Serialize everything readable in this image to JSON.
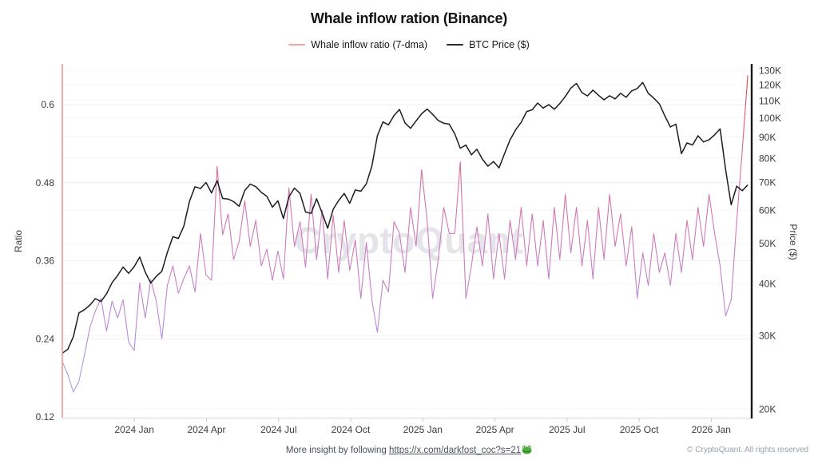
{
  "header": {
    "title": "Whale inflow ration (Binance)"
  },
  "legend": {
    "items": [
      {
        "label": "Whale inflow ratio (7-dma)",
        "color": "#f2a2a8"
      },
      {
        "label": "BTC Price ($)",
        "color": "#2a2a2e"
      }
    ]
  },
  "watermark": "CryptoQuant",
  "footer": {
    "prefix": "More insight by following ",
    "link": "https://x.com/darkfost_coc?s=21",
    "link_emoji": "frog",
    "copyright": "© CryptoQuant. All rights reserved"
  },
  "colors": {
    "background": "#ffffff",
    "title_text": "#121212",
    "tick_text": "#3c3c42",
    "grid": "#ededf2",
    "grid_faint": "#f6f6f9",
    "axis_gray": "#d8d8dd",
    "tick_notch": "#c6c6cc",
    "left_axis": "#f5968f",
    "right_axis": "#1a1a1a",
    "btc_line": "#1c1c1c",
    "spike_red": "#e5453f",
    "lavender": "#a3a7ef",
    "watermark": "#e4e4ea",
    "footer_text": "#4c525a",
    "copyright_text": "#99a0a9",
    "frog_green": "#4cae3d"
  },
  "chart_data": {
    "type": "line",
    "title": "Whale inflow ration (Binance)",
    "grid": "faint horizontal at both axes ticks",
    "legend_position": "top-center",
    "x_axis": {
      "unit": "weeks since 2023-10-01",
      "start_week": 0,
      "step_weeks": 1,
      "end_week": 124,
      "ticks": [
        {
          "t": 13.04,
          "label": "2024 Jan"
        },
        {
          "t": 26.09,
          "label": "2024 Apr"
        },
        {
          "t": 39.13,
          "label": "2024 Jul"
        },
        {
          "t": 52.17,
          "label": "2024 Oct"
        },
        {
          "t": 65.22,
          "label": "2025 Jan"
        },
        {
          "t": 78.26,
          "label": "2025 Apr"
        },
        {
          "t": 91.3,
          "label": "2025 Jul"
        },
        {
          "t": 104.35,
          "label": "2025 Oct"
        },
        {
          "t": 117.39,
          "label": "2026 Jan"
        }
      ]
    },
    "y_left": {
      "label": "Ratio",
      "scale": "linear",
      "range": [
        0.12,
        0.66
      ],
      "ticks": [
        {
          "v": 0.6,
          "label": "0.6"
        },
        {
          "v": 0.48,
          "label": "0.48"
        },
        {
          "v": 0.36,
          "label": "0.36"
        },
        {
          "v": 0.24,
          "label": "0.24"
        },
        {
          "v": 0.12,
          "label": "0.12"
        }
      ]
    },
    "y_right": {
      "label": "Price ($)",
      "scale": "log",
      "unit": "thousand USD",
      "range": [
        20,
        130
      ],
      "ticks": [
        {
          "v": 130,
          "label": "130K"
        },
        {
          "v": 120,
          "label": "120K"
        },
        {
          "v": 110,
          "label": "110K"
        },
        {
          "v": 100,
          "label": "100K"
        },
        {
          "v": 90,
          "label": "90K"
        },
        {
          "v": 80,
          "label": "80K"
        },
        {
          "v": 70,
          "label": "70K"
        },
        {
          "v": 60,
          "label": "60K"
        },
        {
          "v": 50,
          "label": "50K"
        },
        {
          "v": 40,
          "label": "40K"
        },
        {
          "v": 30,
          "label": "30K"
        },
        {
          "v": 20,
          "label": "20K"
        }
      ]
    },
    "series": [
      {
        "name": "Whale inflow ratio (7-dma)",
        "axis": "left",
        "style": "gradient_by_value (red at high ratio, lavender at low ratio)",
        "gradient_stops": [
          {
            "offset": 0.0,
            "color": "#e5453f"
          },
          {
            "offset": 0.1,
            "color": "#e1525f"
          },
          {
            "offset": 0.25,
            "color": "#da6a92"
          },
          {
            "offset": 0.42,
            "color": "#d277b0"
          },
          {
            "offset": 0.58,
            "color": "#c87fc4"
          },
          {
            "offset": 0.75,
            "color": "#b68dd9"
          },
          {
            "offset": 0.9,
            "color": "#a99ce8"
          },
          {
            "offset": 1.0,
            "color": "#a3a7ef"
          }
        ],
        "values": [
          0.205,
          0.185,
          0.158,
          0.175,
          0.215,
          0.258,
          0.283,
          0.302,
          0.252,
          0.298,
          0.272,
          0.3,
          0.235,
          0.222,
          0.326,
          0.272,
          0.331,
          0.298,
          0.24,
          0.322,
          0.352,
          0.31,
          0.333,
          0.352,
          0.312,
          0.402,
          0.338,
          0.33,
          0.505,
          0.4,
          0.432,
          0.362,
          0.39,
          0.452,
          0.382,
          0.422,
          0.352,
          0.378,
          0.33,
          0.375,
          0.332,
          0.472,
          0.382,
          0.42,
          0.35,
          0.462,
          0.362,
          0.438,
          0.332,
          0.43,
          0.342,
          0.422,
          0.345,
          0.392,
          0.302,
          0.388,
          0.3,
          0.25,
          0.33,
          0.312,
          0.42,
          0.402,
          0.342,
          0.442,
          0.382,
          0.5,
          0.422,
          0.302,
          0.362,
          0.442,
          0.402,
          0.402,
          0.512,
          0.302,
          0.352,
          0.412,
          0.352,
          0.432,
          0.332,
          0.402,
          0.332,
          0.422,
          0.362,
          0.442,
          0.352,
          0.432,
          0.352,
          0.422,
          0.332,
          0.442,
          0.362,
          0.462,
          0.372,
          0.442,
          0.352,
          0.422,
          0.332,
          0.442,
          0.362,
          0.462,
          0.382,
          0.432,
          0.352,
          0.412,
          0.302,
          0.372,
          0.322,
          0.402,
          0.342,
          0.372,
          0.322,
          0.402,
          0.342,
          0.422,
          0.362,
          0.442,
          0.382,
          0.462,
          0.402,
          0.352,
          0.275,
          0.3,
          0.42,
          0.53,
          0.645
        ]
      },
      {
        "name": "BTC Price ($)",
        "axis": "right",
        "color": "#1c1c1c",
        "values": [
          27.2,
          27.8,
          29.8,
          34.0,
          34.6,
          35.5,
          36.8,
          36.2,
          37.8,
          40.2,
          41.8,
          43.8,
          42.3,
          43.9,
          46.3,
          42.6,
          40.1,
          41.6,
          42.8,
          47.5,
          51.8,
          51.3,
          55.0,
          63.0,
          68.3,
          67.6,
          69.9,
          66.0,
          70.6,
          64.0,
          63.8,
          62.9,
          61.3,
          66.9,
          69.3,
          68.3,
          66.2,
          64.8,
          61.0,
          63.2,
          57.3,
          64.6,
          67.8,
          65.8,
          59.4,
          58.9,
          63.9,
          59.1,
          54.3,
          60.3,
          63.3,
          65.8,
          62.3,
          67.1,
          66.6,
          69.4,
          76.5,
          90.5,
          97.7,
          96.1,
          101.2,
          104.7,
          97.2,
          94.3,
          98.3,
          102.2,
          104.9,
          101.9,
          98.5,
          97.0,
          96.5,
          91.5,
          84.5,
          86.0,
          81.5,
          84.0,
          79.5,
          76.5,
          78.5,
          75.8,
          82.0,
          88.5,
          93.5,
          97.5,
          103.5,
          104.5,
          108.5,
          105.5,
          107.5,
          104.8,
          108.2,
          112.5,
          117.8,
          120.9,
          114.9,
          112.8,
          116.5,
          113.2,
          110.4,
          112.9,
          111.0,
          114.5,
          112.0,
          116.0,
          117.5,
          121.5,
          114.5,
          111.5,
          108.0,
          101.0,
          95.0,
          96.5,
          82.0,
          87.0,
          86.0,
          90.5,
          87.5,
          88.5,
          91.0,
          94.0,
          75.0,
          61.8,
          68.5,
          66.8,
          69.0
        ]
      }
    ]
  }
}
